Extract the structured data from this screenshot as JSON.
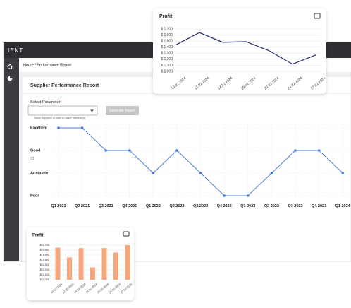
{
  "app": {
    "brand": "IENT",
    "breadcrumb": "Home / Performance Report"
  },
  "report": {
    "title": "Supplier Performance Report",
    "select_label": "Select Parameter",
    "required_mark": "*",
    "helper": "Select Suppliers in order to view Parameter(s)",
    "button": "Generate Report"
  },
  "chart_data": [
    {
      "type": "line",
      "color": "#4a7bdb",
      "grid": true,
      "categories": [
        "Q1 2021",
        "Q2 2021",
        "Q3 2021",
        "Q4 2021",
        "Q1 2022",
        "Q2 2022",
        "Q3 2022",
        "Q4 2022",
        "Q1 2023",
        "Q2 2023",
        "Q3 2023",
        "Q4 2023",
        "Q1 2024"
      ],
      "values": [
        4,
        4,
        3,
        3,
        2,
        3,
        2,
        1,
        1,
        2,
        3,
        3,
        2
      ],
      "ylim": [
        1,
        4
      ],
      "yticks": [
        {
          "value": 1,
          "label": "Poor"
        },
        {
          "value": 2,
          "label": "Adequate"
        },
        {
          "value": 3,
          "label": "Good"
        },
        {
          "value": 4,
          "label": "Excellent"
        }
      ]
    },
    {
      "type": "line",
      "title": "Profit",
      "color": "#1f2a6b",
      "grid": true,
      "categories": [
        "10.02.2024",
        "12.02.2024",
        "14.02.2024",
        "19.02.2024",
        "20.02.2024",
        "24.02.2024",
        "27.02.2024"
      ],
      "values": [
        1440,
        1640,
        1480,
        1490,
        1340,
        1120,
        1270
      ],
      "ylim": [
        1000,
        1700
      ],
      "yticks": [
        {
          "value": 1000,
          "label": "$ 1,000"
        },
        {
          "value": 1100,
          "label": "$ 1,100"
        },
        {
          "value": 1200,
          "label": "$ 1,200"
        },
        {
          "value": 1300,
          "label": "$ 1,300"
        },
        {
          "value": 1400,
          "label": "$ 1,400"
        },
        {
          "value": 1500,
          "label": "$ 1,500"
        },
        {
          "value": 1600,
          "label": "$ 1,600"
        },
        {
          "value": 1700,
          "label": "$ 1,700"
        }
      ]
    },
    {
      "type": "bar",
      "title": "Profit",
      "color": "#f6a77c",
      "grid": true,
      "categories": [
        "10.02.2024",
        "12.02.2024",
        "14.02.2024",
        "19.02.2024",
        "20.02.2024",
        "24.02.2024",
        "27.02.2024"
      ],
      "values": [
        1650,
        1450,
        1640,
        1250,
        1640,
        1550,
        1700
      ],
      "ylim": [
        1000,
        1700
      ],
      "yticks": [
        {
          "value": 1000,
          "label": "$ 1,000"
        },
        {
          "value": 1100,
          "label": "$ 1,100"
        },
        {
          "value": 1200,
          "label": "$ 1,200"
        },
        {
          "value": 1300,
          "label": "$ 1,300"
        },
        {
          "value": 1400,
          "label": "$ 1,400"
        },
        {
          "value": 1500,
          "label": "$ 1,500"
        },
        {
          "value": 1600,
          "label": "$ 1,600"
        },
        {
          "value": 1700,
          "label": "$ 1,700"
        }
      ]
    }
  ]
}
